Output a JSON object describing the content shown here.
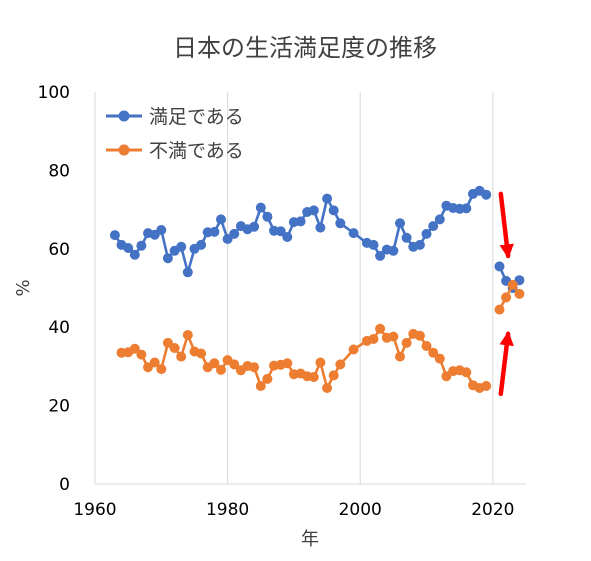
{
  "chart_data": {
    "type": "line",
    "title": "日本の生活満足度の推移",
    "xlabel": "年",
    "ylabel": "%",
    "xlim": [
      1960,
      2025
    ],
    "ylim": [
      0,
      100
    ],
    "xticks": [
      "1960",
      "1980",
      "2000",
      "2020"
    ],
    "yticks": [
      "0",
      "20",
      "40",
      "60",
      "80",
      "100"
    ],
    "grid": "vertical",
    "legend": "top-left",
    "series": [
      {
        "name": "満足である",
        "color": "#4472C4",
        "segments": [
          [
            [
              1963,
              63.5
            ],
            [
              1964,
              61
            ],
            [
              1965,
              60.2
            ],
            [
              1966,
              58.5
            ],
            [
              1967,
              60.8
            ],
            [
              1968,
              64
            ],
            [
              1969,
              63.6
            ],
            [
              1970,
              64.8
            ],
            [
              1971,
              57.6
            ],
            [
              1972,
              59.5
            ],
            [
              1973,
              60.5
            ],
            [
              1974,
              54
            ],
            [
              1975,
              60
            ],
            [
              1976,
              61
            ],
            [
              1977,
              64.2
            ],
            [
              1978,
              64.3
            ],
            [
              1979,
              67.5
            ],
            [
              1980,
              62.5
            ],
            [
              1981,
              63.8
            ],
            [
              1982,
              65.8
            ],
            [
              1983,
              65
            ],
            [
              1984,
              65.6
            ],
            [
              1985,
              70.5
            ],
            [
              1986,
              68.2
            ],
            [
              1987,
              64.6
            ],
            [
              1988,
              64.5
            ],
            [
              1989,
              63
            ],
            [
              1990,
              66.8
            ],
            [
              1991,
              67
            ],
            [
              1992,
              69.4
            ],
            [
              1993,
              69.8
            ],
            [
              1994,
              65.4
            ],
            [
              1995,
              72.8
            ],
            [
              1996,
              69.8
            ],
            [
              1997,
              66.5
            ],
            [
              1999,
              64
            ],
            [
              2001,
              61.5
            ],
            [
              2002,
              61
            ],
            [
              2003,
              58.2
            ],
            [
              2004,
              59.8
            ],
            [
              2005,
              59.5
            ],
            [
              2006,
              66.5
            ],
            [
              2007,
              62.8
            ],
            [
              2008,
              60.5
            ],
            [
              2009,
              61
            ],
            [
              2010,
              63.8
            ],
            [
              2011,
              65.8
            ],
            [
              2012,
              67.5
            ],
            [
              2013,
              71
            ],
            [
              2014,
              70.4
            ],
            [
              2015,
              70.2
            ],
            [
              2016,
              70.3
            ],
            [
              2017,
              74
            ],
            [
              2018,
              74.8
            ],
            [
              2019,
              73.8
            ]
          ],
          [
            [
              2021,
              55.5
            ],
            [
              2022,
              51.8
            ],
            [
              2023,
              50
            ],
            [
              2024,
              52
            ]
          ]
        ]
      },
      {
        "name": "不満である",
        "color": "#ED7D31",
        "segments": [
          [
            [
              1964,
              33.5
            ],
            [
              1965,
              33.6
            ],
            [
              1966,
              34.5
            ],
            [
              1967,
              33
            ],
            [
              1968,
              29.8
            ],
            [
              1969,
              31
            ],
            [
              1970,
              29.3
            ],
            [
              1971,
              36
            ],
            [
              1972,
              34.7
            ],
            [
              1973,
              32.5
            ],
            [
              1974,
              38
            ],
            [
              1975,
              33.8
            ],
            [
              1976,
              33.3
            ],
            [
              1977,
              29.8
            ],
            [
              1978,
              30.8
            ],
            [
              1979,
              29.1
            ],
            [
              1980,
              31.6
            ],
            [
              1981,
              30.5
            ],
            [
              1982,
              29
            ],
            [
              1983,
              30.1
            ],
            [
              1984,
              29.8
            ],
            [
              1985,
              25
            ],
            [
              1986,
              26.8
            ],
            [
              1987,
              30.2
            ],
            [
              1988,
              30.4
            ],
            [
              1989,
              30.8
            ],
            [
              1990,
              28
            ],
            [
              1991,
              28.2
            ],
            [
              1992,
              27.5
            ],
            [
              1993,
              27.3
            ],
            [
              1994,
              31
            ],
            [
              1995,
              24.5
            ],
            [
              1996,
              27.7
            ],
            [
              1997,
              30.5
            ],
            [
              1999,
              34.3
            ],
            [
              2001,
              36.5
            ],
            [
              2002,
              37
            ],
            [
              2003,
              39.6
            ],
            [
              2004,
              37.3
            ],
            [
              2005,
              37.6
            ],
            [
              2006,
              32.5
            ],
            [
              2007,
              36
            ],
            [
              2008,
              38.3
            ],
            [
              2009,
              37.8
            ],
            [
              2010,
              35.2
            ],
            [
              2011,
              33.5
            ],
            [
              2012,
              32
            ],
            [
              2013,
              27.5
            ],
            [
              2014,
              28.8
            ],
            [
              2015,
              29
            ],
            [
              2016,
              28.5
            ],
            [
              2017,
              25.2
            ],
            [
              2018,
              24.5
            ],
            [
              2019,
              25
            ]
          ],
          [
            [
              2021,
              44.5
            ],
            [
              2022,
              47.6
            ],
            [
              2023,
              50.8
            ],
            [
              2024,
              48.5
            ]
          ]
        ]
      }
    ],
    "annotations": [
      {
        "type": "arrow",
        "direction": "down",
        "color": "#FF0000",
        "from": [
          2021.2,
          74
        ],
        "to": [
          2022.3,
          58.2
        ]
      },
      {
        "type": "arrow",
        "direction": "up",
        "color": "#FF0000",
        "from": [
          2021.2,
          23
        ],
        "to": [
          2022.3,
          38.3
        ]
      }
    ]
  }
}
